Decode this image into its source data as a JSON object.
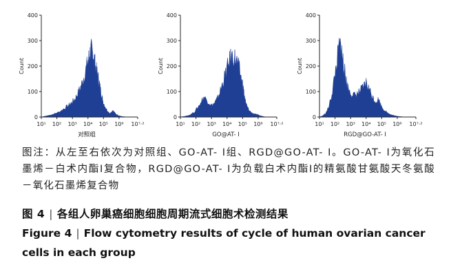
{
  "figure": {
    "panels": [
      {
        "caption": "对照组",
        "ylabel": "Count",
        "yticks": [
          "0",
          "100",
          "200",
          "300",
          "400"
        ],
        "xticks": [
          "10¹",
          "10²",
          "10³",
          "10⁴",
          "10⁵",
          "10⁶",
          "10⁷·²"
        ]
      },
      {
        "caption": "GO@AT- Ⅰ",
        "ylabel": "Count",
        "yticks": [
          "0",
          "100",
          "200",
          "300",
          "400"
        ],
        "xticks": [
          "10¹",
          "10²",
          "10³",
          "10⁴",
          "10⁵",
          "10⁶",
          "10⁷·²"
        ]
      },
      {
        "caption": "RGD@GO-AT- Ⅰ",
        "ylabel": "Count",
        "yticks": [
          "0",
          "100",
          "200",
          "300",
          "400"
        ],
        "xticks": [
          "10¹",
          "10²",
          "10³",
          "10⁴",
          "10⁵",
          "10⁶",
          "10⁷·²"
        ]
      }
    ]
  },
  "chart_data": [
    {
      "type": "area",
      "caption": "对照组",
      "ylabel": "Count",
      "xscale": "log",
      "xlim": [
        1,
        7.2
      ],
      "ylim": [
        0,
        400
      ],
      "x_log10": [
        1.0,
        1.3,
        1.6,
        1.9,
        2.2,
        2.5,
        2.8,
        3.0,
        3.2,
        3.4,
        3.6,
        3.8,
        4.0,
        4.1,
        4.2,
        4.3,
        4.4,
        4.5,
        4.6,
        4.7,
        4.8,
        4.9,
        5.0,
        5.2,
        5.4,
        5.6,
        5.8,
        6.0,
        6.2,
        6.5,
        7.2
      ],
      "y": [
        0,
        4,
        8,
        14,
        22,
        35,
        48,
        60,
        75,
        100,
        130,
        170,
        220,
        245,
        265,
        250,
        230,
        195,
        170,
        145,
        110,
        80,
        55,
        30,
        15,
        25,
        12,
        5,
        2,
        0,
        0
      ]
    },
    {
      "type": "area",
      "caption": "GO@AT- Ⅰ",
      "ylabel": "Count",
      "xscale": "log",
      "xlim": [
        1,
        7.2
      ],
      "ylim": [
        0,
        400
      ],
      "x_log10": [
        1.0,
        1.3,
        1.6,
        1.9,
        2.2,
        2.5,
        2.8,
        3.0,
        3.2,
        3.4,
        3.6,
        3.8,
        4.0,
        4.2,
        4.4,
        4.6,
        4.8,
        5.0,
        5.1,
        5.2,
        5.4,
        5.6,
        5.8,
        6.0,
        6.2,
        6.5,
        7.2
      ],
      "y": [
        0,
        3,
        8,
        20,
        45,
        80,
        60,
        45,
        55,
        75,
        110,
        150,
        190,
        230,
        240,
        225,
        185,
        130,
        90,
        55,
        28,
        16,
        12,
        8,
        4,
        0,
        0
      ]
    },
    {
      "type": "area",
      "caption": "RGD@GO-AT- Ⅰ",
      "ylabel": "Count",
      "xscale": "log",
      "xlim": [
        1,
        7.2
      ],
      "ylim": [
        0,
        400
      ],
      "x_log10": [
        1.0,
        1.2,
        1.4,
        1.6,
        1.8,
        2.0,
        2.2,
        2.3,
        2.4,
        2.5,
        2.6,
        2.7,
        2.8,
        3.0,
        3.2,
        3.4,
        3.6,
        3.8,
        4.0,
        4.2,
        4.4,
        4.6,
        4.8,
        5.0,
        5.2,
        5.4,
        5.6,
        5.8,
        6.0,
        6.3,
        6.6,
        7.2
      ],
      "y": [
        0,
        5,
        15,
        40,
        90,
        170,
        250,
        280,
        270,
        230,
        185,
        150,
        120,
        95,
        85,
        90,
        100,
        115,
        135,
        110,
        80,
        60,
        70,
        40,
        25,
        15,
        10,
        6,
        3,
        1,
        0,
        0
      ]
    }
  ],
  "note": {
    "text": "图注：从左至右依次为对照组、GO-AT- Ⅰ组、RGD@GO-AT- Ⅰ。GO-AT- Ⅰ为氧化石墨烯－白术内酯Ⅰ复合物，RGD@GO-AT- Ⅰ为负载白术内酯Ⅰ的精氨酸甘氨酸天冬氨酸－氧化石墨烯复合物"
  },
  "title_cn": {
    "label": "图 4",
    "text": "各组人卵巢癌细胞细胞周期流式细胞术检测结果"
  },
  "title_en": {
    "label": "Figure 4",
    "text": "Flow cytometry results of cycle of human ovarian cancer cells in each group"
  },
  "colors": {
    "fill": "#1f3f95",
    "axis": "#222222"
  }
}
